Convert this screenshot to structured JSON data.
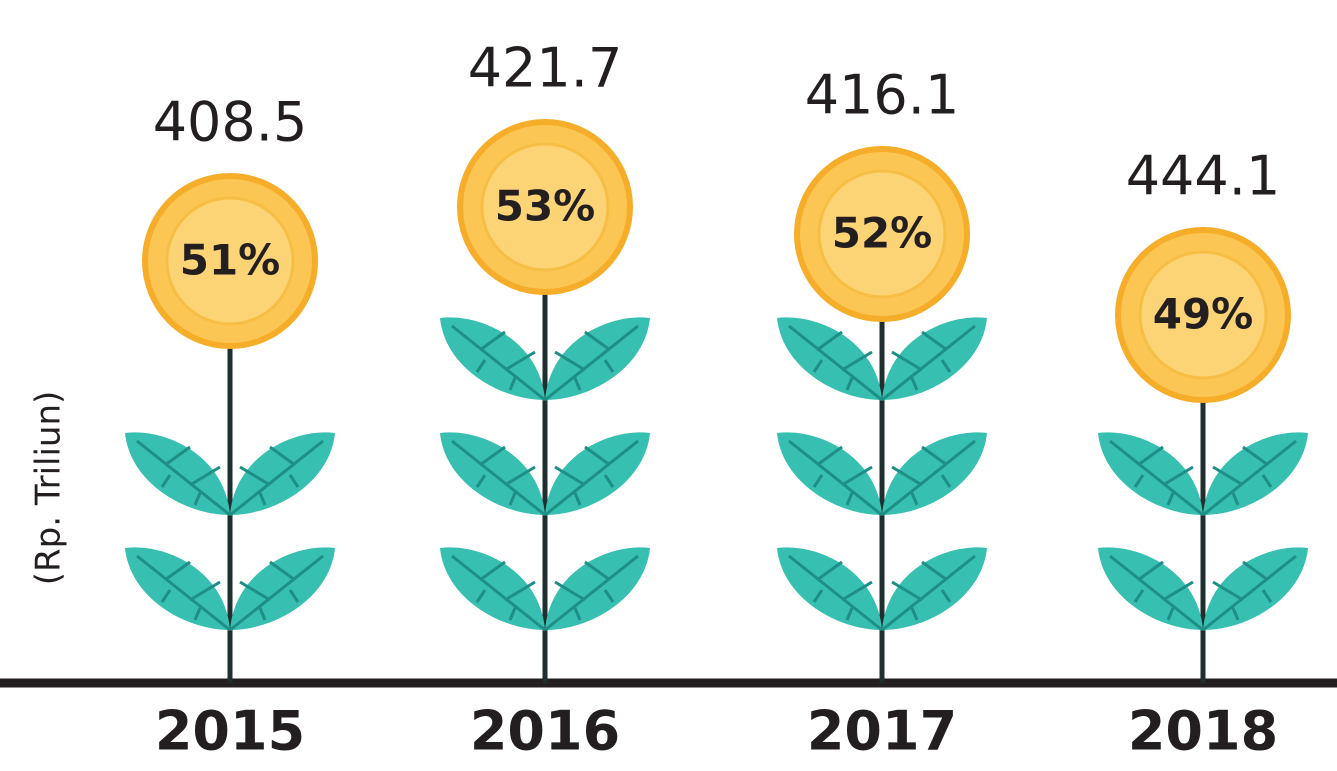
{
  "chart_data": {
    "type": "pictograph",
    "y_label": "(Rp. Triliun)",
    "categories": [
      "2015",
      "2016",
      "2017",
      "2018"
    ],
    "values": [
      408.5,
      421.7,
      416.1,
      444.1
    ],
    "shares": [
      51,
      53,
      52,
      49
    ],
    "share_labels": [
      "51%",
      "53%",
      "52%",
      "49%"
    ],
    "color": "#fcc654",
    "leaf_color": "#37bfb1"
  }
}
